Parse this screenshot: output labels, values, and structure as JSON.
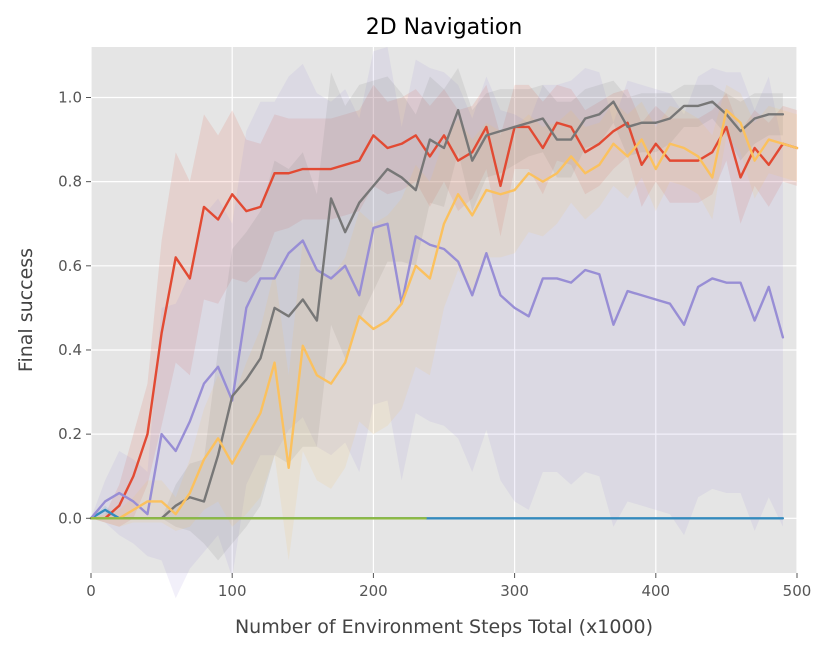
{
  "chart_data": {
    "type": "line",
    "title": "2D Navigation",
    "xlabel": "Number of Environment Steps Total (x1000)",
    "ylabel": "Final success",
    "xlim": [
      0,
      500
    ],
    "ylim": [
      -0.13,
      1.12
    ],
    "xticks": [
      "0",
      "100",
      "200",
      "300",
      "400",
      "500"
    ],
    "yticks": [
      "0.0",
      "0.2",
      "0.4",
      "0.6",
      "0.8",
      "1.0"
    ],
    "grid": true,
    "legend": "none",
    "series": [
      {
        "name": "red",
        "color": "#E24A33",
        "x": [
          0,
          10,
          20,
          30,
          40,
          50,
          60,
          70,
          80,
          90,
          100,
          110,
          120,
          130,
          140,
          150,
          160,
          170,
          180,
          190,
          200,
          210,
          220,
          230,
          240,
          250,
          260,
          270,
          280,
          290,
          300,
          310,
          320,
          330,
          340,
          350,
          360,
          370,
          380,
          390,
          400,
          410,
          420,
          430,
          440,
          450,
          460,
          470,
          480,
          490,
          500
        ],
        "y": [
          0,
          0,
          0.03,
          0.1,
          0.2,
          0.44,
          0.62,
          0.57,
          0.74,
          0.71,
          0.77,
          0.73,
          0.74,
          0.82,
          0.82,
          0.83,
          0.83,
          0.83,
          0.84,
          0.85,
          0.91,
          0.88,
          0.89,
          0.91,
          0.86,
          0.91,
          0.85,
          0.87,
          0.93,
          0.79,
          0.93,
          0.93,
          0.88,
          0.94,
          0.93,
          0.87,
          0.89,
          0.92,
          0.94,
          0.84,
          0.89,
          0.85,
          0.85,
          0.85,
          0.87,
          0.93,
          0.81,
          0.88,
          0.84,
          0.89,
          0.88
        ],
        "band": [
          0,
          0.01,
          0.05,
          0.1,
          0.12,
          0.22,
          0.25,
          0.23,
          0.22,
          0.2,
          0.2,
          0.17,
          0.15,
          0.14,
          0.13,
          0.12,
          0.12,
          0.12,
          0.12,
          0.12,
          0.12,
          0.11,
          0.11,
          0.11,
          0.12,
          0.11,
          0.12,
          0.11,
          0.1,
          0.12,
          0.1,
          0.1,
          0.11,
          0.09,
          0.09,
          0.1,
          0.1,
          0.09,
          0.08,
          0.1,
          0.09,
          0.1,
          0.1,
          0.1,
          0.1,
          0.08,
          0.11,
          0.09,
          0.1,
          0.09,
          0.09
        ]
      },
      {
        "name": "blue",
        "color": "#348ABD",
        "x": [
          0,
          10,
          20,
          30,
          40,
          50,
          100,
          150,
          200,
          250,
          300,
          350,
          400,
          450,
          490
        ],
        "y": [
          0,
          0.02,
          0,
          0,
          0,
          0,
          0,
          0,
          0,
          0,
          0,
          0,
          0,
          0,
          0
        ],
        "band": [
          0,
          0.01,
          0,
          0,
          0,
          0,
          0,
          0,
          0,
          0,
          0,
          0,
          0,
          0,
          0
        ]
      },
      {
        "name": "purple",
        "color": "#988ED5",
        "x": [
          0,
          10,
          20,
          30,
          40,
          50,
          60,
          70,
          80,
          90,
          100,
          110,
          120,
          130,
          140,
          150,
          160,
          170,
          180,
          190,
          200,
          210,
          220,
          230,
          240,
          250,
          260,
          270,
          280,
          290,
          300,
          310,
          320,
          330,
          340,
          350,
          360,
          370,
          380,
          390,
          400,
          410,
          420,
          430,
          440,
          450,
          460,
          470,
          480,
          490
        ],
        "y": [
          0,
          0.04,
          0.06,
          0.04,
          0.01,
          0.2,
          0.16,
          0.23,
          0.32,
          0.36,
          0.28,
          0.5,
          0.57,
          0.57,
          0.63,
          0.66,
          0.59,
          0.57,
          0.6,
          0.53,
          0.69,
          0.7,
          0.51,
          0.67,
          0.65,
          0.64,
          0.61,
          0.53,
          0.63,
          0.53,
          0.5,
          0.48,
          0.57,
          0.57,
          0.56,
          0.59,
          0.58,
          0.46,
          0.54,
          0.53,
          0.52,
          0.51,
          0.46,
          0.55,
          0.57,
          0.56,
          0.56,
          0.47,
          0.55,
          0.43
        ],
        "band": [
          0,
          0.05,
          0.1,
          0.1,
          0.1,
          0.3,
          0.35,
          0.35,
          0.4,
          0.4,
          0.42,
          0.42,
          0.42,
          0.42,
          0.42,
          0.42,
          0.42,
          0.42,
          0.42,
          0.42,
          0.42,
          0.42,
          0.42,
          0.42,
          0.42,
          0.42,
          0.42,
          0.42,
          0.42,
          0.44,
          0.46,
          0.46,
          0.46,
          0.46,
          0.48,
          0.48,
          0.48,
          0.48,
          0.5,
          0.5,
          0.5,
          0.5,
          0.5,
          0.5,
          0.5,
          0.5,
          0.5,
          0.5,
          0.5,
          0.45
        ]
      },
      {
        "name": "gray",
        "color": "#777777",
        "x": [
          0,
          10,
          20,
          30,
          40,
          50,
          60,
          70,
          80,
          90,
          100,
          110,
          120,
          130,
          140,
          150,
          160,
          170,
          180,
          190,
          200,
          210,
          220,
          230,
          240,
          250,
          260,
          270,
          280,
          290,
          300,
          310,
          320,
          330,
          340,
          350,
          360,
          370,
          380,
          390,
          400,
          410,
          420,
          430,
          440,
          450,
          460,
          470,
          480,
          490
        ],
        "y": [
          0,
          0,
          0,
          0,
          0,
          0,
          0.03,
          0.05,
          0.04,
          0.15,
          0.29,
          0.33,
          0.38,
          0.5,
          0.48,
          0.52,
          0.47,
          0.76,
          0.68,
          0.75,
          0.79,
          0.83,
          0.81,
          0.78,
          0.9,
          0.88,
          0.97,
          0.85,
          0.91,
          0.92,
          0.93,
          0.94,
          0.95,
          0.9,
          0.9,
          0.95,
          0.96,
          0.99,
          0.93,
          0.94,
          0.94,
          0.95,
          0.98,
          0.98,
          0.99,
          0.96,
          0.92,
          0.95,
          0.96,
          0.96
        ],
        "band": [
          0,
          0,
          0,
          0,
          0,
          0,
          0.05,
          0.08,
          0.1,
          0.25,
          0.35,
          0.35,
          0.35,
          0.35,
          0.35,
          0.35,
          0.3,
          0.3,
          0.3,
          0.28,
          0.25,
          0.22,
          0.2,
          0.18,
          0.15,
          0.14,
          0.1,
          0.12,
          0.1,
          0.1,
          0.09,
          0.08,
          0.08,
          0.09,
          0.09,
          0.07,
          0.07,
          0.05,
          0.07,
          0.07,
          0.07,
          0.06,
          0.05,
          0.05,
          0.04,
          0.05,
          0.07,
          0.06,
          0.05,
          0.05
        ]
      },
      {
        "name": "yellow",
        "color": "#FBC15E",
        "x": [
          0,
          10,
          20,
          30,
          40,
          50,
          60,
          70,
          80,
          90,
          100,
          110,
          120,
          130,
          140,
          150,
          160,
          170,
          180,
          190,
          200,
          210,
          220,
          230,
          240,
          250,
          260,
          270,
          280,
          290,
          300,
          310,
          320,
          330,
          340,
          350,
          360,
          370,
          380,
          390,
          400,
          410,
          420,
          430,
          440,
          450,
          460,
          470,
          480,
          490,
          500
        ],
        "y": [
          0,
          0,
          0,
          0.02,
          0.04,
          0.04,
          0.01,
          0.06,
          0.14,
          0.19,
          0.13,
          0.19,
          0.25,
          0.37,
          0.12,
          0.41,
          0.34,
          0.32,
          0.37,
          0.48,
          0.45,
          0.47,
          0.51,
          0.6,
          0.57,
          0.7,
          0.77,
          0.72,
          0.78,
          0.77,
          0.78,
          0.82,
          0.8,
          0.82,
          0.86,
          0.82,
          0.84,
          0.89,
          0.86,
          0.9,
          0.83,
          0.89,
          0.88,
          0.86,
          0.81,
          0.97,
          0.94,
          0.85,
          0.9,
          0.89,
          0.88
        ],
        "band": [
          0,
          0.01,
          0.02,
          0.03,
          0.05,
          0.05,
          0.04,
          0.08,
          0.12,
          0.15,
          0.15,
          0.18,
          0.2,
          0.22,
          0.22,
          0.25,
          0.25,
          0.25,
          0.25,
          0.25,
          0.25,
          0.25,
          0.25,
          0.24,
          0.23,
          0.2,
          0.18,
          0.18,
          0.16,
          0.15,
          0.15,
          0.14,
          0.13,
          0.12,
          0.11,
          0.11,
          0.1,
          0.1,
          0.1,
          0.09,
          0.1,
          0.09,
          0.09,
          0.09,
          0.1,
          0.06,
          0.07,
          0.09,
          0.08,
          0.08,
          0.08
        ]
      },
      {
        "name": "green",
        "color": "#8EBA42",
        "x": [
          0,
          50,
          100,
          150,
          200,
          237
        ],
        "y": [
          0,
          0,
          0,
          0,
          0,
          0
        ],
        "band": [
          0,
          0,
          0,
          0,
          0,
          0
        ]
      }
    ]
  }
}
